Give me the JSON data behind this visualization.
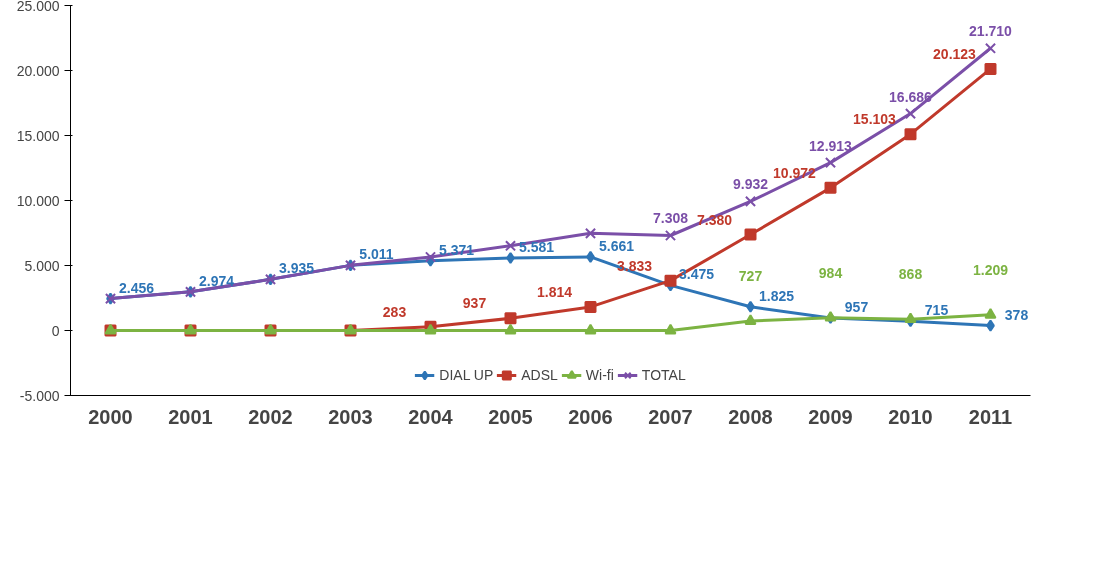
{
  "chart_data": {
    "type": "line",
    "categories": [
      "2000",
      "2001",
      "2002",
      "2003",
      "2004",
      "2005",
      "2006",
      "2007",
      "2008",
      "2009",
      "2010",
      "2011"
    ],
    "ylim": [
      -5000,
      25000
    ],
    "yticks": [
      {
        "value": -5000,
        "label": "-5.000"
      },
      {
        "value": 0,
        "label": "0"
      },
      {
        "value": 5000,
        "label": "5.000"
      },
      {
        "value": 10000,
        "label": "10.000"
      },
      {
        "value": 15000,
        "label": "15.000"
      },
      {
        "value": 20000,
        "label": "20.000"
      },
      {
        "value": 25000,
        "label": "25.000"
      }
    ],
    "legend": "bottom",
    "series": [
      {
        "name": "DIAL UP",
        "color": "#2e75b6",
        "marker": "diamond",
        "values": [
          2456,
          2974,
          3935,
          5011,
          5371,
          5581,
          5661,
          3475,
          1825,
          957,
          715,
          378
        ],
        "value_labels": [
          "2.456",
          "2.974",
          "3.935",
          "5.011",
          "5.371",
          "5.581",
          "5.661",
          "3.475",
          "1.825",
          "957",
          "715",
          "378"
        ]
      },
      {
        "name": "ADSL",
        "color": "#c0392b",
        "marker": "square",
        "values": [
          0,
          0,
          0,
          0,
          283,
          937,
          1814,
          3833,
          7380,
          10972,
          15103,
          20123
        ],
        "value_labels": [
          null,
          null,
          null,
          null,
          "283",
          "937",
          "1.814",
          "3.833",
          "7.380",
          "10.972",
          "15.103",
          "20.123"
        ]
      },
      {
        "name": "Wi-fi",
        "color": "#7cb342",
        "marker": "triangle",
        "values": [
          0,
          0,
          0,
          0,
          0,
          0,
          0,
          0,
          727,
          984,
          868,
          1209
        ],
        "value_labels": [
          null,
          null,
          null,
          null,
          null,
          null,
          null,
          null,
          "727",
          "984",
          "868",
          "1.209"
        ]
      },
      {
        "name": "TOTAL",
        "color": "#7b4fa8",
        "marker": "cross",
        "values": [
          2456,
          2974,
          3935,
          5011,
          5654,
          6518,
          7475,
          7308,
          9932,
          12913,
          16686,
          21710
        ],
        "value_labels": [
          null,
          null,
          null,
          null,
          null,
          null,
          null,
          "7.308",
          "9.932",
          "12.913",
          "16.686",
          "21.710"
        ]
      }
    ]
  }
}
